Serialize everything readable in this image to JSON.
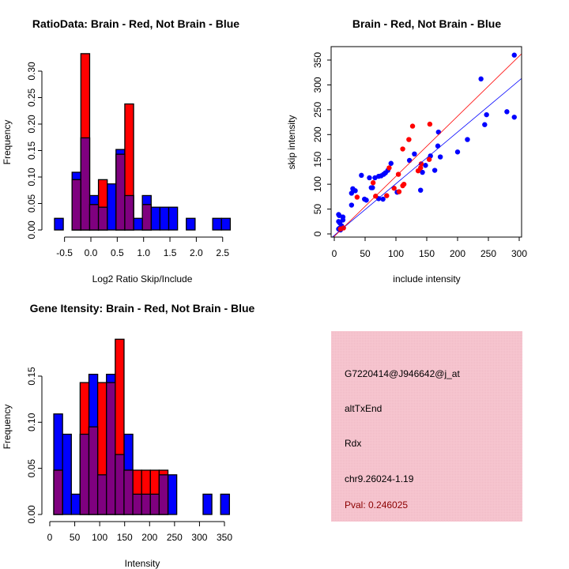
{
  "colors": {
    "brain": "#ff0000",
    "not_brain": "#0000ff",
    "overlap": "#7f007f",
    "panel": "#f5c3cd",
    "pval": "#8b0000"
  },
  "chart_data": [
    {
      "type": "bar",
      "title": "RatioData: Brain - Red, Not Brain - Blue",
      "xlabel": "Log2 Ratio Skip/Include",
      "ylabel": "Frequency",
      "bin_start": -0.69,
      "bin_width": 0.1667,
      "xticks": [
        -0.5,
        0.0,
        0.5,
        1.0,
        1.5,
        2.0,
        2.5
      ],
      "xtick_labels": [
        "-0.5",
        "0.0",
        "0.5",
        "1.0",
        "1.5",
        "2.0",
        "2.5"
      ],
      "yticks": [
        0,
        0.05,
        0.1,
        0.15,
        0.2,
        0.25,
        0.3
      ],
      "ytick_labels": [
        "0.00",
        "0.05",
        "0.10",
        "0.15",
        "0.20",
        "0.25",
        "0.30"
      ],
      "series": [
        {
          "name": "Not Brain",
          "color": "blue",
          "values": [
            0.022,
            0,
            0.109,
            0.174,
            0.065,
            0.043,
            0.087,
            0.152,
            0.065,
            0.022,
            0.065,
            0.043,
            0.043,
            0.043,
            0,
            0.022,
            0,
            0,
            0.022,
            0.022
          ]
        },
        {
          "name": "Brain",
          "color": "red",
          "values": [
            0,
            0,
            0.095,
            0.333,
            0.048,
            0.095,
            0,
            0.143,
            0.238,
            0,
            0.048,
            0,
            0,
            0,
            0,
            0,
            0,
            0,
            0,
            0
          ]
        }
      ]
    },
    {
      "type": "scatter",
      "title": "Brain - Red, Not Brain - Blue",
      "xlabel": "include intensity",
      "ylabel": "skip intensity",
      "xlim": [
        0,
        300
      ],
      "ylim": [
        0,
        350
      ],
      "xticks": [
        0,
        50,
        100,
        150,
        200,
        250,
        300
      ],
      "xtick_labels": [
        "0",
        "50",
        "100",
        "150",
        "200",
        "250",
        "300"
      ],
      "yticks": [
        0,
        50,
        100,
        150,
        200,
        250,
        300,
        350
      ],
      "ytick_labels": [
        "0",
        "50",
        "100",
        "150",
        "200",
        "250",
        "300",
        "350"
      ],
      "series": [
        {
          "name": "Not Brain",
          "color": "blue",
          "fit": {
            "slope": 1.04,
            "intercept": -3
          },
          "points": [
            [
              292,
              360
            ],
            [
              238,
              312
            ],
            [
              280,
              246
            ],
            [
              292,
              235
            ],
            [
              247,
              240
            ],
            [
              244,
              220
            ],
            [
              169,
              205
            ],
            [
              216,
              190
            ],
            [
              168,
              177
            ],
            [
              200,
              165
            ],
            [
              172,
              155
            ],
            [
              156,
              157
            ],
            [
              130,
              161
            ],
            [
              122,
              148
            ],
            [
              163,
              128
            ],
            [
              148,
              138
            ],
            [
              143,
              124
            ],
            [
              140,
              88
            ],
            [
              102,
              84
            ],
            [
              92,
              142
            ],
            [
              87,
              128
            ],
            [
              83,
              123
            ],
            [
              80,
              120
            ],
            [
              76,
              117
            ],
            [
              72,
              116
            ],
            [
              66,
              113
            ],
            [
              57,
              113
            ],
            [
              44,
              118
            ],
            [
              30,
              91
            ],
            [
              34,
              87
            ],
            [
              28,
              82
            ],
            [
              62,
              93
            ],
            [
              60,
              93
            ],
            [
              49,
              70
            ],
            [
              52,
              68
            ],
            [
              72,
              71
            ],
            [
              79,
              70
            ],
            [
              28,
              58
            ],
            [
              7,
              39
            ],
            [
              8,
              37
            ],
            [
              7,
              25
            ],
            [
              9,
              22
            ],
            [
              14,
              34
            ],
            [
              14,
              28
            ],
            [
              7,
              10
            ],
            [
              9,
              12
            ],
            [
              10,
              8
            ],
            [
              12,
              16
            ]
          ]
        },
        {
          "name": "Brain",
          "color": "red",
          "fit": {
            "slope": 1.21,
            "intercept": -5
          },
          "points": [
            [
              155,
              221
            ],
            [
              127,
              217
            ],
            [
              121,
              190
            ],
            [
              111,
              171
            ],
            [
              154,
              150
            ],
            [
              141,
              141
            ],
            [
              140,
              133
            ],
            [
              136,
              127
            ],
            [
              113,
              100
            ],
            [
              111,
              97
            ],
            [
              97,
              92
            ],
            [
              105,
              85
            ],
            [
              104,
              120
            ],
            [
              89,
              133
            ],
            [
              63,
              103
            ],
            [
              67,
              76
            ],
            [
              85,
              77
            ],
            [
              37,
              74
            ],
            [
              15,
              12
            ],
            [
              10,
              10
            ]
          ]
        }
      ]
    },
    {
      "type": "bar",
      "title": "Gene Itensity: Brain - Red, Not Brain - Blue",
      "xlabel": "Intensity",
      "ylabel": "Frequency",
      "bin_start": 8,
      "bin_width": 17.6,
      "xticks": [
        0,
        50,
        100,
        150,
        200,
        250,
        300,
        350
      ],
      "xtick_labels": [
        "0",
        "50",
        "100",
        "150",
        "200",
        "250",
        "300",
        "350"
      ],
      "yticks": [
        0,
        0.05,
        0.1,
        0.15
      ],
      "ytick_labels": [
        "0.00",
        "0.05",
        "0.10",
        "0.15"
      ],
      "series": [
        {
          "name": "Not Brain",
          "color": "blue",
          "values": [
            0.109,
            0.087,
            0.022,
            0.087,
            0.152,
            0.043,
            0.152,
            0.065,
            0.087,
            0.022,
            0.022,
            0.022,
            0.043,
            0.043,
            0,
            0,
            0,
            0.022,
            0,
            0.022
          ]
        },
        {
          "name": "Brain",
          "color": "red",
          "values": [
            0.048,
            0,
            0,
            0.143,
            0.095,
            0.143,
            0.143,
            0.19,
            0.048,
            0.048,
            0.048,
            0.048,
            0.048,
            0,
            0,
            0,
            0,
            0,
            0,
            0
          ]
        }
      ]
    }
  ],
  "info": {
    "probe": "G7220414@J946642@j_at",
    "event": "altTxEnd",
    "gene": "Rdx",
    "location": "chr9.26024-1.19",
    "pval": "Pval: 0.246025"
  }
}
